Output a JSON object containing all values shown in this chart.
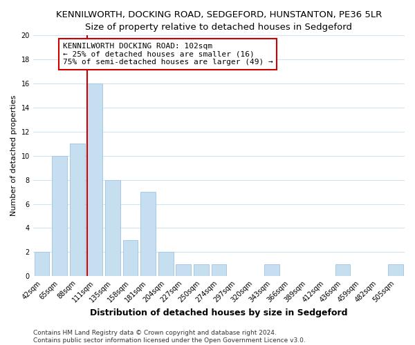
{
  "title": "KENNILWORTH, DOCKING ROAD, SEDGEFORD, HUNSTANTON, PE36 5LR",
  "subtitle": "Size of property relative to detached houses in Sedgeford",
  "xlabel": "Distribution of detached houses by size in Sedgeford",
  "ylabel": "Number of detached properties",
  "bar_labels": [
    "42sqm",
    "65sqm",
    "88sqm",
    "111sqm",
    "135sqm",
    "158sqm",
    "181sqm",
    "204sqm",
    "227sqm",
    "250sqm",
    "274sqm",
    "297sqm",
    "320sqm",
    "343sqm",
    "366sqm",
    "389sqm",
    "412sqm",
    "436sqm",
    "459sqm",
    "482sqm",
    "505sqm"
  ],
  "bar_values": [
    2,
    10,
    11,
    16,
    8,
    3,
    7,
    2,
    1,
    1,
    1,
    0,
    0,
    1,
    0,
    0,
    0,
    1,
    0,
    0,
    1
  ],
  "bar_color": "#c6dff0",
  "bar_edge_color": "#a8c8e8",
  "vline_color": "#cc0000",
  "annotation_title": "KENNILWORTH DOCKING ROAD: 102sqm",
  "annotation_line1": "← 25% of detached houses are smaller (16)",
  "annotation_line2": "75% of semi-detached houses are larger (49) →",
  "annotation_box_facecolor": "#ffffff",
  "annotation_box_edgecolor": "#cc0000",
  "ylim": [
    0,
    20
  ],
  "yticks": [
    0,
    2,
    4,
    6,
    8,
    10,
    12,
    14,
    16,
    18,
    20
  ],
  "fig_facecolor": "#ffffff",
  "axes_facecolor": "#ffffff",
  "grid_color": "#d0e4f0",
  "footer_line1": "Contains HM Land Registry data © Crown copyright and database right 2024.",
  "footer_line2": "Contains public sector information licensed under the Open Government Licence v3.0.",
  "title_fontsize": 9.5,
  "subtitle_fontsize": 9,
  "xlabel_fontsize": 9,
  "ylabel_fontsize": 8,
  "tick_fontsize": 7,
  "annotation_fontsize": 8,
  "footer_fontsize": 6.5
}
